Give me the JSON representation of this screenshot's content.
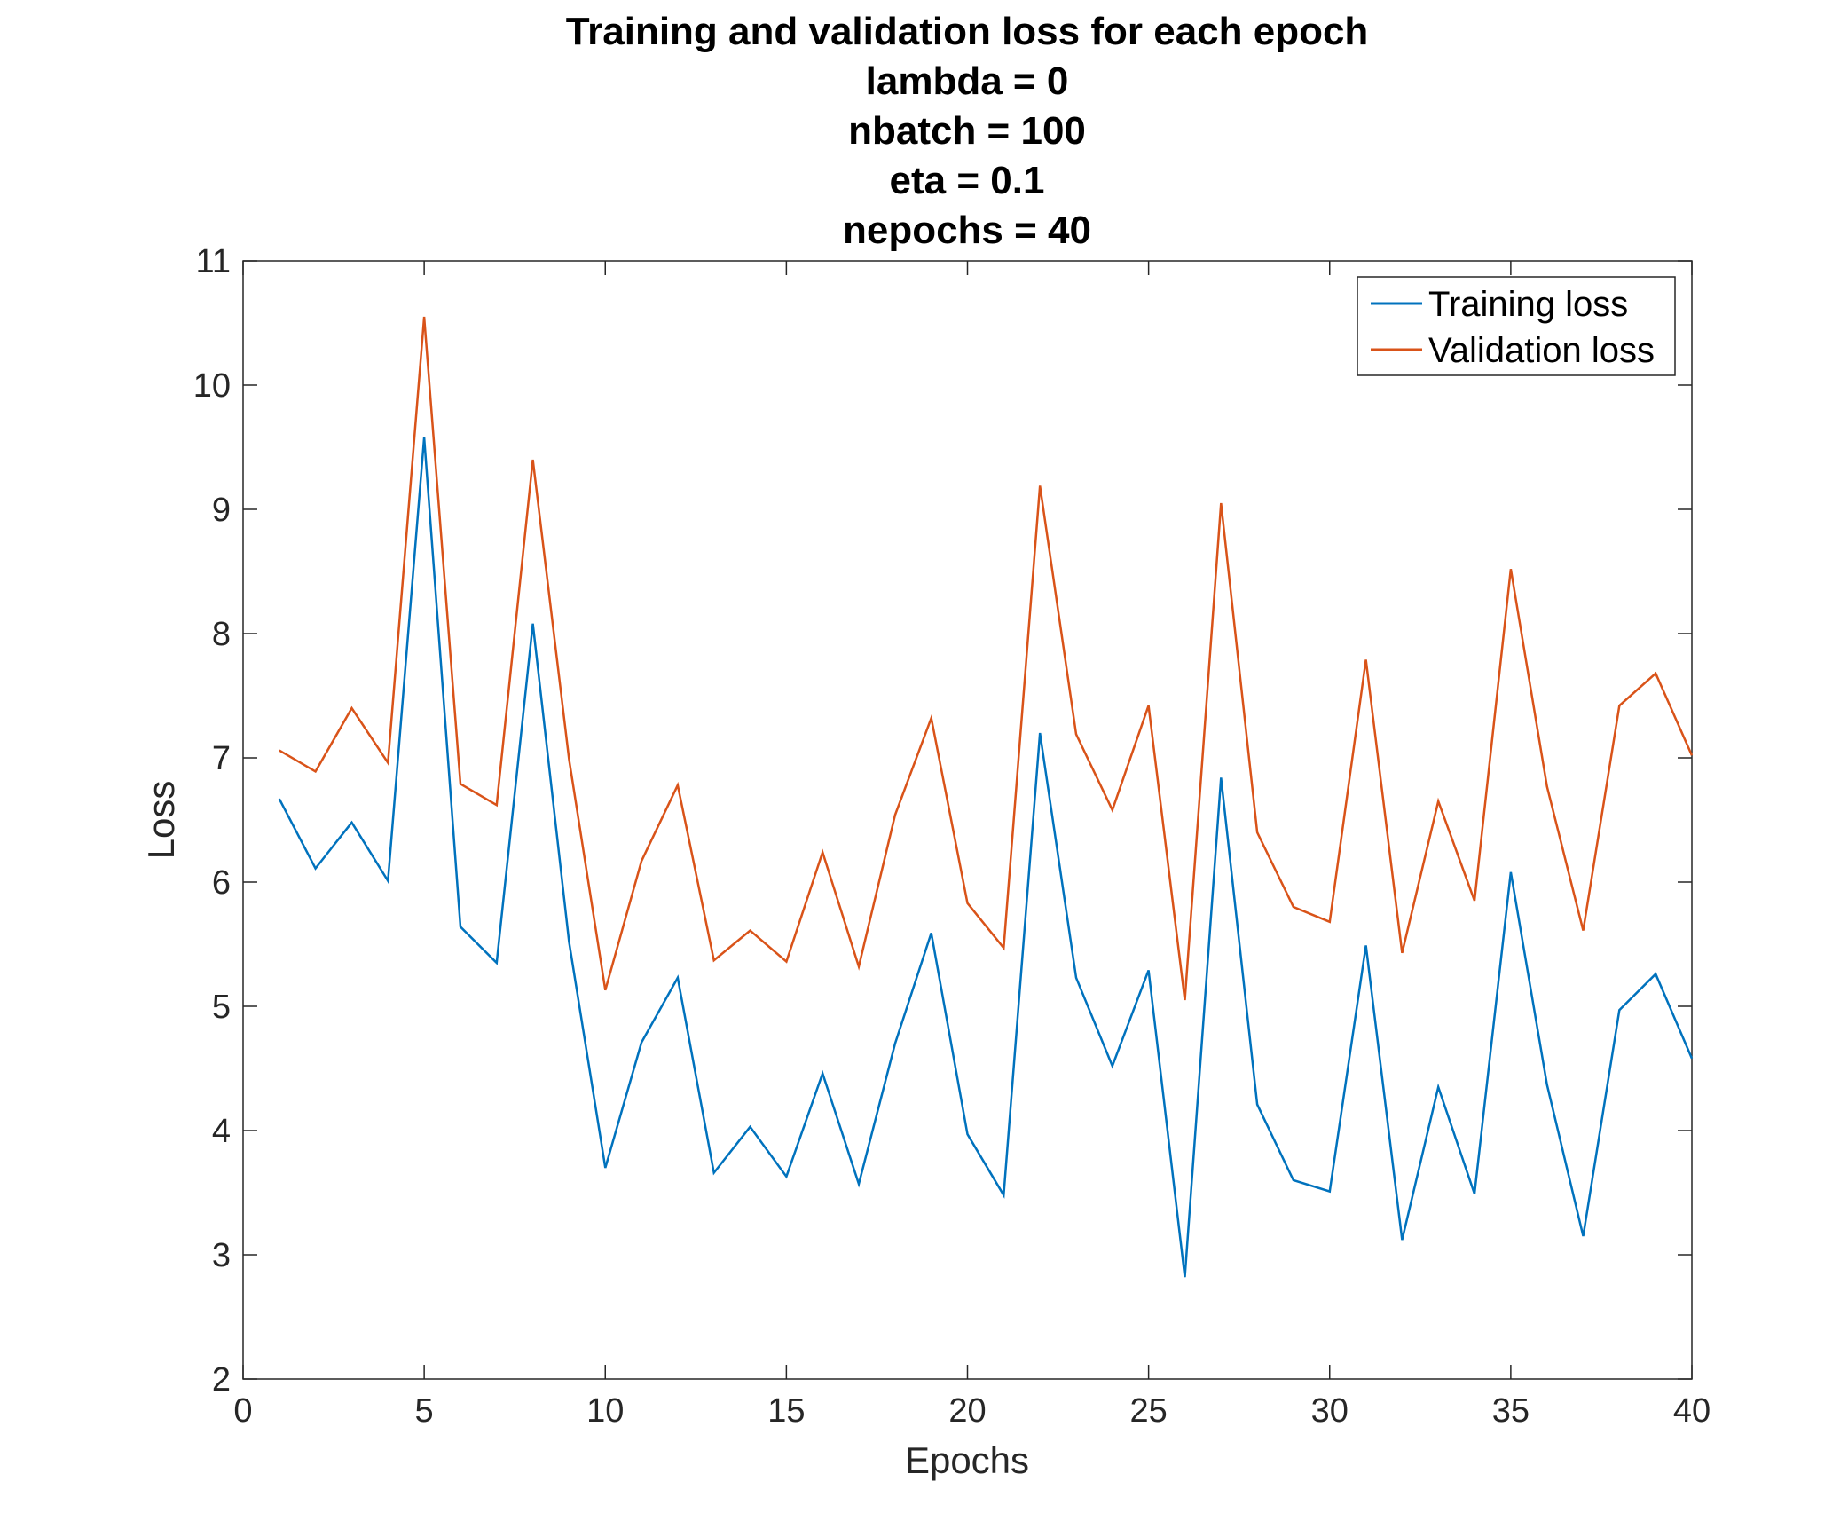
{
  "chart_data": {
    "type": "line",
    "title_lines": [
      "Training and validation loss for each epoch",
      "lambda = 0",
      "nbatch = 100",
      "eta = 0.1",
      "nepochs = 40"
    ],
    "xlabel": "Epochs",
    "ylabel": "Loss",
    "xlim": [
      0,
      40
    ],
    "ylim": [
      2,
      11
    ],
    "xticks": [
      0,
      5,
      10,
      15,
      20,
      25,
      30,
      35,
      40
    ],
    "yticks": [
      2,
      3,
      4,
      5,
      6,
      7,
      8,
      9,
      10,
      11
    ],
    "grid": false,
    "legend_position": "top-right",
    "x": [
      1,
      2,
      3,
      4,
      5,
      6,
      7,
      8,
      9,
      10,
      11,
      12,
      13,
      14,
      15,
      16,
      17,
      18,
      19,
      20,
      21,
      22,
      23,
      24,
      25,
      26,
      27,
      28,
      29,
      30,
      31,
      32,
      33,
      34,
      35,
      36,
      37,
      38,
      39,
      40
    ],
    "series": [
      {
        "name": "Training loss",
        "color": "#0072BD",
        "values": [
          6.67,
          6.11,
          6.48,
          6.01,
          9.58,
          5.64,
          5.35,
          8.08,
          5.52,
          3.7,
          4.71,
          5.23,
          3.66,
          4.03,
          3.63,
          4.46,
          3.57,
          4.7,
          5.59,
          3.97,
          3.48,
          7.2,
          5.23,
          4.52,
          5.29,
          2.82,
          6.84,
          4.21,
          3.6,
          3.51,
          5.49,
          3.12,
          4.35,
          3.49,
          6.08,
          4.37,
          3.15,
          4.97,
          5.26,
          4.58
        ]
      },
      {
        "name": "Validation loss",
        "color": "#D95319",
        "values": [
          7.06,
          6.89,
          7.4,
          6.96,
          10.55,
          6.79,
          6.62,
          9.4,
          6.99,
          5.13,
          6.17,
          6.78,
          5.37,
          5.61,
          5.36,
          6.24,
          5.32,
          6.54,
          7.32,
          5.83,
          5.47,
          9.19,
          7.19,
          6.58,
          7.42,
          5.05,
          9.05,
          6.4,
          5.8,
          5.68,
          7.79,
          5.43,
          6.65,
          5.85,
          8.52,
          6.77,
          5.61,
          7.42,
          7.68,
          7.02
        ]
      }
    ]
  }
}
